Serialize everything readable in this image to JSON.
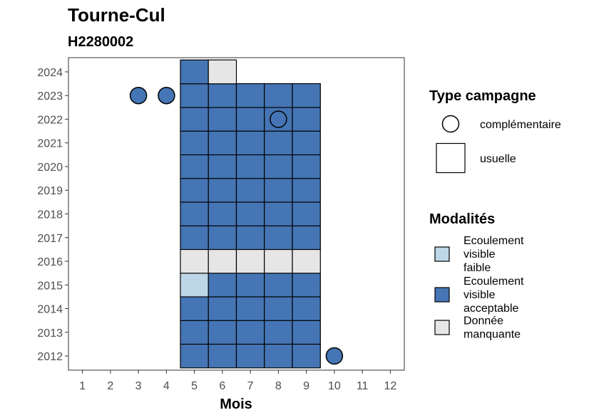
{
  "chart_data": {
    "type": "heatmap",
    "title": "Tourne-Cul",
    "subtitle": "H2280002",
    "xlabel": "Mois",
    "ylabel": "",
    "x_ticks": [
      1,
      2,
      3,
      4,
      5,
      6,
      7,
      8,
      9,
      10,
      11,
      12
    ],
    "y_ticks": [
      2012,
      2013,
      2014,
      2015,
      2016,
      2017,
      2018,
      2019,
      2020,
      2021,
      2022,
      2023,
      2024
    ],
    "xlim": [
      0.5,
      12.5
    ],
    "ylim": [
      2011.4,
      2024.6
    ],
    "grid": false,
    "cells": [
      {
        "month": 5,
        "year": 2012,
        "modalite": "acceptable",
        "campagne": "usuelle"
      },
      {
        "month": 6,
        "year": 2012,
        "modalite": "acceptable",
        "campagne": "usuelle"
      },
      {
        "month": 7,
        "year": 2012,
        "modalite": "acceptable",
        "campagne": "usuelle"
      },
      {
        "month": 8,
        "year": 2012,
        "modalite": "acceptable",
        "campagne": "usuelle"
      },
      {
        "month": 9,
        "year": 2012,
        "modalite": "acceptable",
        "campagne": "usuelle"
      },
      {
        "month": 10,
        "year": 2012,
        "modalite": "acceptable",
        "campagne": "complementaire"
      },
      {
        "month": 5,
        "year": 2013,
        "modalite": "acceptable",
        "campagne": "usuelle"
      },
      {
        "month": 6,
        "year": 2013,
        "modalite": "acceptable",
        "campagne": "usuelle"
      },
      {
        "month": 7,
        "year": 2013,
        "modalite": "acceptable",
        "campagne": "usuelle"
      },
      {
        "month": 8,
        "year": 2013,
        "modalite": "acceptable",
        "campagne": "usuelle"
      },
      {
        "month": 9,
        "year": 2013,
        "modalite": "acceptable",
        "campagne": "usuelle"
      },
      {
        "month": 5,
        "year": 2014,
        "modalite": "acceptable",
        "campagne": "usuelle"
      },
      {
        "month": 6,
        "year": 2014,
        "modalite": "acceptable",
        "campagne": "usuelle"
      },
      {
        "month": 7,
        "year": 2014,
        "modalite": "acceptable",
        "campagne": "usuelle"
      },
      {
        "month": 8,
        "year": 2014,
        "modalite": "acceptable",
        "campagne": "usuelle"
      },
      {
        "month": 9,
        "year": 2014,
        "modalite": "acceptable",
        "campagne": "usuelle"
      },
      {
        "month": 5,
        "year": 2015,
        "modalite": "faible",
        "campagne": "usuelle"
      },
      {
        "month": 6,
        "year": 2015,
        "modalite": "acceptable",
        "campagne": "usuelle"
      },
      {
        "month": 7,
        "year": 2015,
        "modalite": "acceptable",
        "campagne": "usuelle"
      },
      {
        "month": 8,
        "year": 2015,
        "modalite": "acceptable",
        "campagne": "usuelle"
      },
      {
        "month": 9,
        "year": 2015,
        "modalite": "acceptable",
        "campagne": "usuelle"
      },
      {
        "month": 5,
        "year": 2016,
        "modalite": "manquante",
        "campagne": "usuelle"
      },
      {
        "month": 6,
        "year": 2016,
        "modalite": "manquante",
        "campagne": "usuelle"
      },
      {
        "month": 7,
        "year": 2016,
        "modalite": "manquante",
        "campagne": "usuelle"
      },
      {
        "month": 8,
        "year": 2016,
        "modalite": "manquante",
        "campagne": "usuelle"
      },
      {
        "month": 9,
        "year": 2016,
        "modalite": "manquante",
        "campagne": "usuelle"
      },
      {
        "month": 5,
        "year": 2017,
        "modalite": "acceptable",
        "campagne": "usuelle"
      },
      {
        "month": 6,
        "year": 2017,
        "modalite": "acceptable",
        "campagne": "usuelle"
      },
      {
        "month": 7,
        "year": 2017,
        "modalite": "acceptable",
        "campagne": "usuelle"
      },
      {
        "month": 8,
        "year": 2017,
        "modalite": "acceptable",
        "campagne": "usuelle"
      },
      {
        "month": 9,
        "year": 2017,
        "modalite": "acceptable",
        "campagne": "usuelle"
      },
      {
        "month": 5,
        "year": 2018,
        "modalite": "acceptable",
        "campagne": "usuelle"
      },
      {
        "month": 6,
        "year": 2018,
        "modalite": "acceptable",
        "campagne": "usuelle"
      },
      {
        "month": 7,
        "year": 2018,
        "modalite": "acceptable",
        "campagne": "usuelle"
      },
      {
        "month": 8,
        "year": 2018,
        "modalite": "acceptable",
        "campagne": "usuelle"
      },
      {
        "month": 9,
        "year": 2018,
        "modalite": "acceptable",
        "campagne": "usuelle"
      },
      {
        "month": 5,
        "year": 2019,
        "modalite": "acceptable",
        "campagne": "usuelle"
      },
      {
        "month": 6,
        "year": 2019,
        "modalite": "acceptable",
        "campagne": "usuelle"
      },
      {
        "month": 7,
        "year": 2019,
        "modalite": "acceptable",
        "campagne": "usuelle"
      },
      {
        "month": 8,
        "year": 2019,
        "modalite": "acceptable",
        "campagne": "usuelle"
      },
      {
        "month": 9,
        "year": 2019,
        "modalite": "acceptable",
        "campagne": "usuelle"
      },
      {
        "month": 5,
        "year": 2020,
        "modalite": "acceptable",
        "campagne": "usuelle"
      },
      {
        "month": 6,
        "year": 2020,
        "modalite": "acceptable",
        "campagne": "usuelle"
      },
      {
        "month": 7,
        "year": 2020,
        "modalite": "acceptable",
        "campagne": "usuelle"
      },
      {
        "month": 8,
        "year": 2020,
        "modalite": "acceptable",
        "campagne": "usuelle"
      },
      {
        "month": 9,
        "year": 2020,
        "modalite": "acceptable",
        "campagne": "usuelle"
      },
      {
        "month": 5,
        "year": 2021,
        "modalite": "acceptable",
        "campagne": "usuelle"
      },
      {
        "month": 6,
        "year": 2021,
        "modalite": "acceptable",
        "campagne": "usuelle"
      },
      {
        "month": 7,
        "year": 2021,
        "modalite": "acceptable",
        "campagne": "usuelle"
      },
      {
        "month": 8,
        "year": 2021,
        "modalite": "acceptable",
        "campagne": "usuelle"
      },
      {
        "month": 9,
        "year": 2021,
        "modalite": "acceptable",
        "campagne": "usuelle"
      },
      {
        "month": 5,
        "year": 2022,
        "modalite": "acceptable",
        "campagne": "usuelle"
      },
      {
        "month": 6,
        "year": 2022,
        "modalite": "acceptable",
        "campagne": "usuelle"
      },
      {
        "month": 7,
        "year": 2022,
        "modalite": "acceptable",
        "campagne": "usuelle"
      },
      {
        "month": 8,
        "year": 2022,
        "modalite": "acceptable",
        "campagne": "usuelle"
      },
      {
        "month": 8,
        "year": 2022,
        "modalite": "acceptable",
        "campagne": "complementaire"
      },
      {
        "month": 9,
        "year": 2022,
        "modalite": "acceptable",
        "campagne": "usuelle"
      },
      {
        "month": 3,
        "year": 2023,
        "modalite": "acceptable",
        "campagne": "complementaire"
      },
      {
        "month": 4,
        "year": 2023,
        "modalite": "acceptable",
        "campagne": "complementaire"
      },
      {
        "month": 5,
        "year": 2023,
        "modalite": "acceptable",
        "campagne": "usuelle"
      },
      {
        "month": 6,
        "year": 2023,
        "modalite": "acceptable",
        "campagne": "usuelle"
      },
      {
        "month": 7,
        "year": 2023,
        "modalite": "acceptable",
        "campagne": "usuelle"
      },
      {
        "month": 8,
        "year": 2023,
        "modalite": "acceptable",
        "campagne": "usuelle"
      },
      {
        "month": 9,
        "year": 2023,
        "modalite": "acceptable",
        "campagne": "usuelle"
      },
      {
        "month": 5,
        "year": 2024,
        "modalite": "acceptable",
        "campagne": "usuelle"
      },
      {
        "month": 6,
        "year": 2024,
        "modalite": "manquante",
        "campagne": "usuelle"
      }
    ],
    "legend": {
      "type_campagne": {
        "title": "Type campagne",
        "entries": [
          {
            "key": "complementaire",
            "label": "complémentaire",
            "shape": "circle"
          },
          {
            "key": "usuelle",
            "label": "usuelle",
            "shape": "square"
          }
        ]
      },
      "modalites": {
        "title": "Modalités",
        "entries": [
          {
            "key": "faible",
            "lines": [
              "Ecoulement",
              "visible",
              "faible"
            ],
            "color": "#bdd7e7"
          },
          {
            "key": "acceptable",
            "lines": [
              "Ecoulement",
              "visible",
              "acceptable"
            ],
            "color": "#4575b4"
          },
          {
            "key": "manquante",
            "lines": [
              "Donnée",
              "manquante"
            ],
            "color": "#e6e6e6"
          }
        ]
      }
    }
  }
}
